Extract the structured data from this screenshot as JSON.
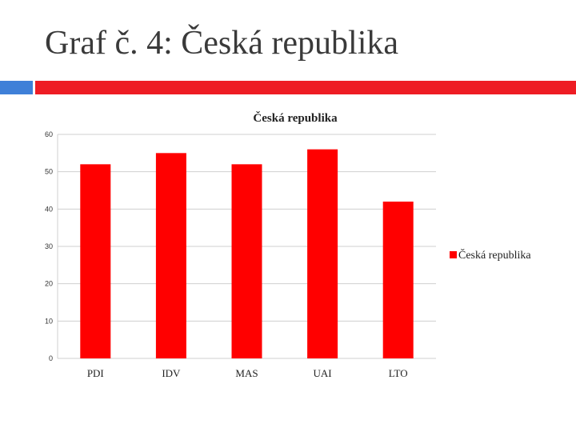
{
  "slide": {
    "title": "Graf č. 4: Česká republika"
  },
  "colors": {
    "accent_blue": "#3f80d8",
    "accent_red": "#ee1c24",
    "bar": "#ff0000",
    "grid": "#cfcfcf",
    "text": "#3a3a3a"
  },
  "chart_data": {
    "type": "bar",
    "title": "Česká republika",
    "categories": [
      "PDI",
      "IDV",
      "MAS",
      "UAI",
      "LTO"
    ],
    "series": [
      {
        "name": "Česká republika",
        "values": [
          52,
          55,
          52,
          56,
          42
        ]
      }
    ],
    "ylim": [
      0,
      60
    ],
    "yticks": [
      0,
      10,
      20,
      30,
      40,
      50,
      60
    ],
    "grid": true,
    "legend": "right"
  }
}
